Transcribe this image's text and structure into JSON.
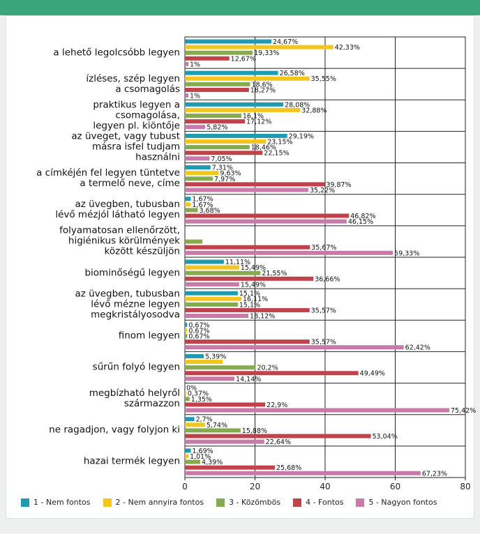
{
  "chart_data": {
    "type": "hbar",
    "categories": [
      "a lehető legolcsóbb legyen",
      "ízléses, szép legyen\na csomagolás",
      "praktikus legyen a\ncsomagolása,\nlegyen pl. kiöntője",
      "az üveget, vagy tubust\nmásra isfel tudjam\nhasználni",
      "a címkéjén fel legyen tüntetve\na termelő neve, címe",
      "az üvegben, tubusban\nlévő mézjól látható legyen",
      "folyamatosan ellenőrzött,\nhigiénikus körülmények\nközött készüljön",
      "biominőségű legyen",
      "az üvegben, tubusban\nlévő mézne legyen\nmegkristályosodva",
      "finom legyen",
      "sűrűn folyó legyen",
      "megbízható helyről\nszármazzon",
      "ne ragadjon, vagy folyjon ki",
      "hazai termék legyen"
    ],
    "series": [
      {
        "name": "1 - Nem fontos",
        "color": "#1f9bb0",
        "values": [
          24.67,
          26.58,
          28.08,
          29.19,
          7.31,
          1.67,
          null,
          11.11,
          15.1,
          0.67,
          5.39,
          0,
          2.7,
          1.69
        ],
        "value_labels": [
          "24,67%",
          "26,58%",
          "28,08%",
          "29,19%",
          "7,31%",
          "1,67%",
          null,
          "11,11%",
          "15,1%",
          "0,67%",
          "5,39%",
          "0%",
          "2,7%",
          "1,69%"
        ]
      },
      {
        "name": "2 - Nem annyira fontos",
        "color": "#f2c61f",
        "values": [
          42.33,
          35.55,
          32.88,
          23.15,
          9.63,
          1.67,
          null,
          15.49,
          16.11,
          0.67,
          10.78,
          0.37,
          5.74,
          1.01
        ],
        "value_labels": [
          "42,33%",
          "35,55%",
          "32,88%",
          "23,15%",
          "9,63%",
          "1,67%",
          null,
          "15,49%",
          "16,11%",
          "0,67%",
          null,
          "0,37%",
          "5,74%",
          "1,01%"
        ]
      },
      {
        "name": "3 - Közömbös",
        "color": "#86aa4f",
        "values": [
          19.33,
          18.6,
          16.1,
          18.46,
          7.97,
          3.68,
          5,
          21.55,
          15.1,
          0.67,
          20.2,
          1.35,
          15.88,
          4.39
        ],
        "value_labels": [
          "19,33%",
          "18,6%",
          "16,1%",
          "18,46%",
          "7,97%",
          "3,68%",
          null,
          "21,55%",
          "15,1%",
          "0,67%",
          "20,2%",
          "1,35%",
          "15,88%",
          "4,39%"
        ]
      },
      {
        "name": "4 - Fontos",
        "color": "#c0434b",
        "values": [
          12.67,
          18.27,
          17.12,
          22.15,
          39.87,
          46.82,
          35.67,
          36.66,
          35.57,
          35.57,
          49.49,
          22.9,
          53.04,
          25.68
        ],
        "value_labels": [
          "12,67%",
          "18,27%",
          "17,12%",
          "22,15%",
          "39,87%",
          "46,82%",
          "35,67%",
          "36,66%",
          "35,57%",
          "35,57%",
          "49,49%",
          "22,9%",
          "53,04%",
          "25,68%"
        ]
      },
      {
        "name": "5 - Nagyon fontos",
        "color": "#c87aa8",
        "values": [
          1,
          1,
          5.82,
          7.05,
          35.22,
          46.15,
          59.33,
          15.49,
          18.12,
          62.42,
          14.14,
          75.42,
          22.64,
          67.23
        ],
        "value_labels": [
          "1%",
          "1%",
          "5,82%",
          "7,05%",
          "35,22%",
          "46,15%",
          "59,33%",
          "15,49%",
          "18,12%",
          "62,42%",
          "14,14%",
          "75,42%",
          "22,64%",
          "67,23%"
        ]
      }
    ],
    "xlim": [
      0,
      80
    ],
    "xticks": [
      0,
      20,
      40,
      60,
      80
    ],
    "grid": true
  }
}
